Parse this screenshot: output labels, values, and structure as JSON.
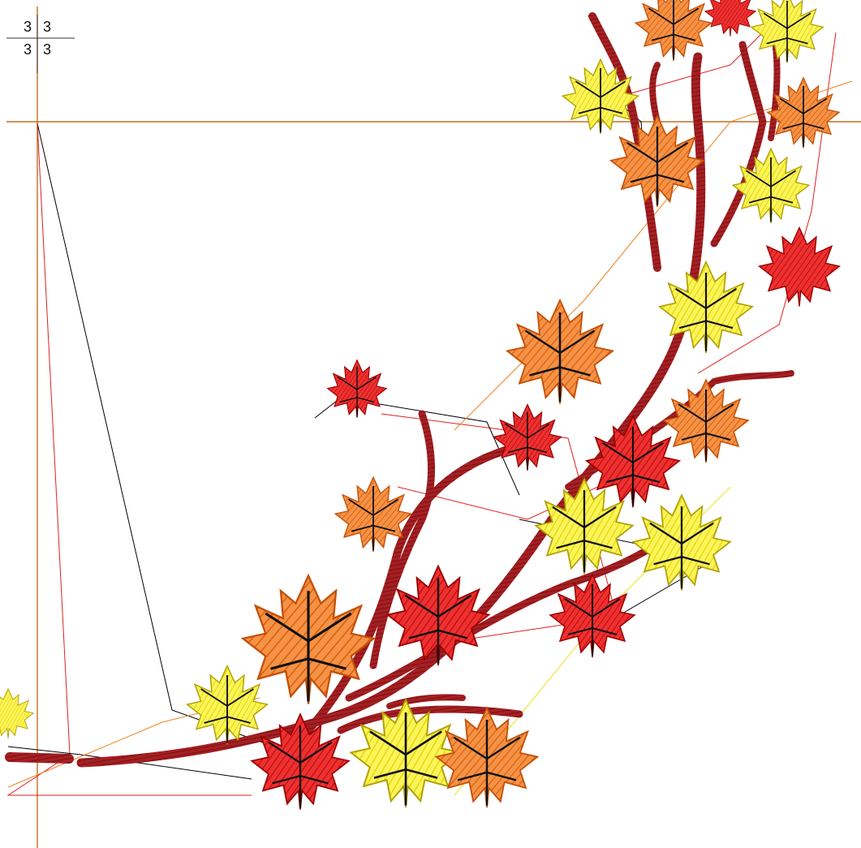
{
  "hoop_indicator": {
    "top_left": "3",
    "top_right": "3",
    "bottom_left": "3",
    "bottom_right": "3"
  },
  "colors": {
    "background": "#ffffff",
    "guide_line": "#c07020",
    "branch": "#9b1b1b",
    "leaf_red": "#e01818",
    "leaf_orange": "#f07a20",
    "leaf_yellow": "#f6ee2a",
    "jump_black": "#000000",
    "jump_red": "#e02020",
    "jump_orange": "#f08020",
    "jump_yellow": "#f0e020"
  },
  "icons": {
    "hoop_marker": "crosshair-quadrant-icon"
  }
}
